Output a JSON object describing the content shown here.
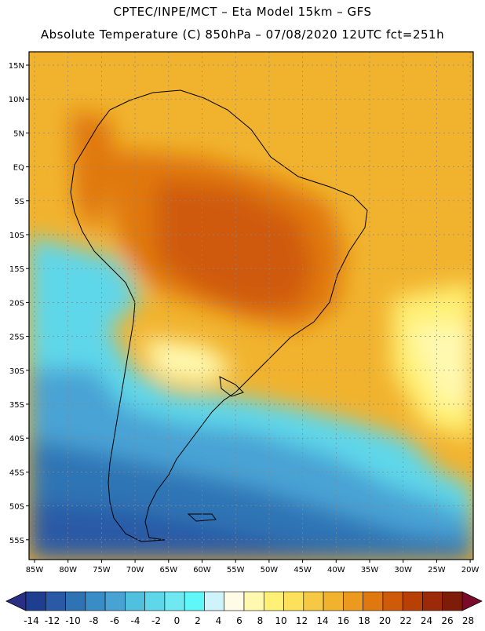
{
  "header": {
    "line1": "CPTEC/INPE/MCT –  Eta Model 15km – GFS",
    "line2": "Absolute Temperature (C) 850hPa – 07/08/2020 12UTC fct=251h"
  },
  "map": {
    "lat_labels": [
      "15N",
      "10N",
      "5N",
      "EQ",
      "5S",
      "10S",
      "15S",
      "20S",
      "25S",
      "30S",
      "35S",
      "40S",
      "45S",
      "50S",
      "55S"
    ],
    "lon_labels": [
      "85W",
      "80W",
      "75W",
      "70W",
      "65W",
      "60W",
      "55W",
      "50W",
      "45W",
      "40W",
      "35W",
      "30W",
      "25W",
      "20W"
    ]
  },
  "colorbar": {
    "tick_labels": [
      "-14",
      "-12",
      "-10",
      "-8",
      "-6",
      "-4",
      "-2",
      "0",
      "2",
      "4",
      "6",
      "8",
      "10",
      "12",
      "14",
      "16",
      "18",
      "20",
      "22",
      "24",
      "26",
      "28"
    ],
    "colors": [
      "#1e3f8f",
      "#2a5aa6",
      "#2e74b5",
      "#3a8cc6",
      "#48a3d4",
      "#4fc1de",
      "#5fd7ea",
      "#6fe8f2",
      "#5ff7f7",
      "#cff3fb",
      "#fffbe6",
      "#fff9b0",
      "#fff176",
      "#fde15a",
      "#f6c944",
      "#f1b32e",
      "#eb9a1f",
      "#e07810",
      "#cf5a08",
      "#b84005",
      "#9c2a08",
      "#7e1c0a"
    ],
    "low_color": "#2a2f86",
    "high_color": "#7a0a2a"
  }
}
